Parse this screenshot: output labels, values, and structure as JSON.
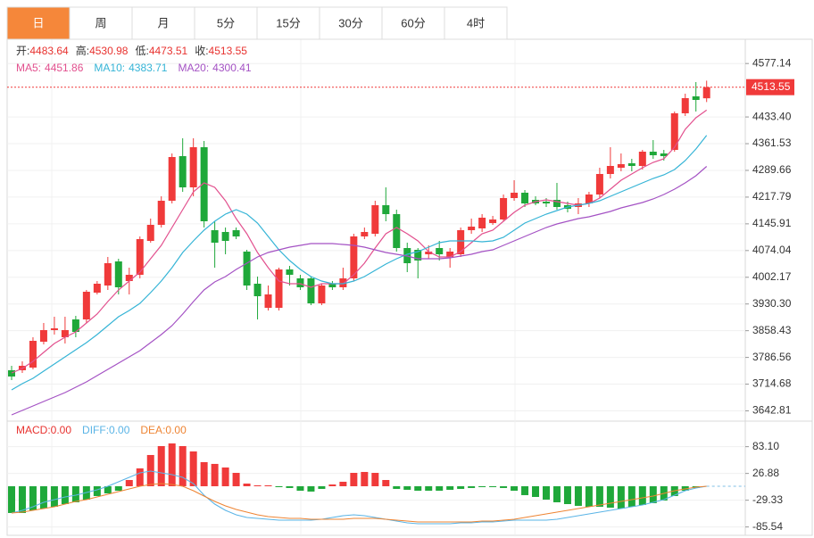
{
  "tabs": {
    "items": [
      "日",
      "周",
      "月",
      "5分",
      "15分",
      "30分",
      "60分",
      "4时"
    ],
    "active": 0,
    "active_color": "#f5873a"
  },
  "chart_data": [
    {
      "type": "candlestick",
      "ohlc_labels": {
        "open": "开:",
        "high": "高:",
        "low": "低:",
        "close": "收:"
      },
      "open": [
        3752,
        3752,
        3759.2,
        3828.8,
        3860,
        3840.8,
        3888.8,
        3888.8,
        3960.8,
        3980,
        4044.8,
        3992,
        4008.8,
        4100,
        4143.2,
        4208,
        4328,
        4244,
        4352,
        4128.8,
        4124,
        4128.8,
        4071.2,
        3984.8,
        3920,
        3920,
        4023.2,
        3999.2,
        3999.2,
        3932,
        3984.8,
        3975.2,
        3999.2,
        4112,
        4119.2,
        4196,
        4172,
        4080.8,
        4076,
        4064,
        4080.8,
        4056.8,
        4064,
        4128.8,
        4133.6,
        4148,
        4157.6,
        4215.2,
        4229.6,
        4210.4,
        4205.6,
        4210.4,
        4196,
        4191.2,
        4200.8,
        4224.8,
        4280,
        4296.8,
        4308.8,
        4301.6,
        4340,
        4335.2,
        4344.8,
        4443.2,
        4488.8,
        4483.64
      ],
      "high": [
        3764,
        3776,
        3840.8,
        3879.2,
        3896,
        3896,
        3898.4,
        3968,
        3992,
        4056.8,
        4052,
        4028,
        4112,
        4160,
        4220,
        4335.2,
        4376,
        4376,
        4368.8,
        4152.8,
        4136,
        4136,
        4076,
        4004,
        3980,
        4028,
        4032.8,
        4008.8,
        4004,
        3984.8,
        3992,
        4028,
        4119.2,
        4136,
        4208,
        4244,
        4184,
        4095.2,
        4080.8,
        4088,
        4100,
        4080.8,
        4136,
        4160,
        4172,
        4167.2,
        4224.8,
        4263.2,
        4236.8,
        4220,
        4215.2,
        4256,
        4205.6,
        4215.2,
        4232,
        4296.8,
        4352,
        4335.2,
        4320.8,
        4344.8,
        4371.2,
        4344.8,
        4448,
        4496,
        4527.2,
        4530.98
      ],
      "low": [
        3725.6,
        3744.8,
        3754.4,
        3821.6,
        3848,
        3824,
        3840.8,
        3879.2,
        3956,
        3968,
        3956,
        3956,
        3999.2,
        4095.2,
        4136,
        4200.8,
        4232,
        4220,
        4136,
        4028,
        4064,
        4104.8,
        3968,
        3888.8,
        3912.8,
        3912.8,
        3980,
        3968,
        3927.2,
        3927.2,
        3968,
        3968,
        3992,
        4104.8,
        4112,
        4152.8,
        4071.2,
        4016,
        3999.2,
        4052,
        4047.2,
        4028,
        4056.8,
        4119.2,
        4124,
        4143.2,
        4152.8,
        4208,
        4191.2,
        4196,
        4191.2,
        4184,
        4176.8,
        4172,
        4191.2,
        4215.2,
        4268,
        4287.2,
        4287.2,
        4292,
        4320.8,
        4316,
        4340,
        4436,
        4448,
        4473.51
      ],
      "close": [
        3735.2,
        3764,
        3831.2,
        3860,
        3864.8,
        3860,
        3855.2,
        3963.2,
        3984.8,
        4040,
        3975.2,
        4008.8,
        4104.8,
        4143.2,
        4208,
        4325.6,
        4244,
        4352,
        4152.8,
        4095.2,
        4100,
        4112,
        3980,
        3951.2,
        3956,
        4023.2,
        4008.8,
        3975.2,
        3932,
        3980,
        3975.2,
        3999.2,
        4112,
        4124,
        4196,
        4172,
        4080.8,
        4040,
        4047.2,
        4071.2,
        4064,
        4071.2,
        4128.8,
        4138.4,
        4162.4,
        4157.6,
        4215.2,
        4229.6,
        4200.8,
        4200.8,
        4200.8,
        4191.2,
        4186.4,
        4200.8,
        4224.8,
        4280,
        4301.6,
        4306.4,
        4301.6,
        4340,
        4330.4,
        4328,
        4443.2,
        4484,
        4479.2,
        4513.55
      ],
      "up_color": "#f03a3a",
      "down_color": "#1fa83a",
      "label_color": "#333333",
      "value_color": "#e8322f",
      "series": [
        {
          "name": "MA5:",
          "color": "#e2508e",
          "values": [
            3744.8,
            3756.8,
            3776,
            3800,
            3824,
            3840.8,
            3855.2,
            3879.2,
            3903.2,
            3936.8,
            3968,
            3992,
            4016,
            4052,
            4088,
            4136,
            4184,
            4232,
            4256,
            4244,
            4208,
            4160,
            4119.2,
            4068.8,
            4028,
            3992,
            3984.8,
            3984.8,
            3975.2,
            3984.8,
            3984.8,
            3984.8,
            4008.8,
            4040,
            4080.8,
            4119.2,
            4136,
            4119.2,
            4100,
            4071.2,
            4056.8,
            4056.8,
            4071.2,
            4095.2,
            4119.2,
            4128.8,
            4152.8,
            4176.8,
            4196,
            4205.6,
            4210.4,
            4205.6,
            4200.8,
            4196,
            4200.8,
            4215.2,
            4239.2,
            4263.2,
            4280,
            4296.8,
            4311.2,
            4320.8,
            4352,
            4400,
            4431.2,
            4451.86
          ]
        },
        {
          "name": "MA10:",
          "color": "#35b4d6",
          "values": [
            3699.2,
            3716,
            3730.4,
            3749.6,
            3768.8,
            3788,
            3807.2,
            3826.4,
            3848,
            3872,
            3896,
            3912.8,
            3932,
            3960.8,
            3992,
            4028,
            4068.8,
            4100,
            4128.8,
            4152.8,
            4172,
            4184,
            4172,
            4148,
            4112,
            4076,
            4047.2,
            4023.2,
            4004,
            3992,
            3984.8,
            3984.8,
            3992,
            4004,
            4020.8,
            4037.6,
            4052,
            4064,
            4071.2,
            4083.2,
            4095.2,
            4100,
            4100,
            4100,
            4097.6,
            4100,
            4109.6,
            4128.8,
            4148,
            4160,
            4172,
            4181.6,
            4191.2,
            4196,
            4200.8,
            4208,
            4220,
            4232,
            4244,
            4256,
            4268,
            4277.6,
            4292,
            4316,
            4347.2,
            4383.71
          ]
        },
        {
          "name": "MA20:",
          "color": "#a452c4",
          "values": [
            3632,
            3644,
            3656,
            3668,
            3680,
            3692,
            3706.4,
            3720.8,
            3737.6,
            3754.4,
            3771.2,
            3788,
            3804.8,
            3826.4,
            3848,
            3872,
            3903.2,
            3936.8,
            3968,
            3989.6,
            4004,
            4023.2,
            4040,
            4056.8,
            4068.8,
            4076,
            4083.2,
            4088,
            4092.8,
            4092.8,
            4092.8,
            4090.4,
            4088,
            4083.2,
            4076,
            4068.8,
            4064,
            4059.2,
            4052,
            4052,
            4052,
            4054.4,
            4059.2,
            4064,
            4071.2,
            4076,
            4088,
            4100,
            4112,
            4124,
            4136,
            4145.6,
            4152.8,
            4160,
            4164.8,
            4172,
            4179.2,
            4188.8,
            4196,
            4203.2,
            4212.8,
            4224.8,
            4239.2,
            4256,
            4275.2,
            4300.41
          ]
        }
      ],
      "ylim": [
        3615.2,
        4640
      ],
      "yticks": [
        4577.14,
        {
          "value": 4433.4,
          "label": "4433.40"
        },
        4361.53,
        4289.66,
        4217.79,
        4145.91,
        4074.04,
        4002.17,
        {
          "value": 3930.3,
          "label": "3930.30"
        },
        3858.43,
        3786.56,
        3714.68,
        3642.81
      ],
      "grid": true
    },
    {
      "type": "macd",
      "up_color": "#f03a3a",
      "down_color": "#1fa83a",
      "series": [
        {
          "name": "MACD:",
          "kind": "histogram",
          "color": "#e8322f",
          "legend_value_label": "0.00",
          "values": [
            -56.2,
            -56.2,
            -50.6,
            -46.9,
            -43.1,
            -37.5,
            -33.7,
            -28.1,
            -20.6,
            -15.0,
            -9.4,
            13.1,
            37.5,
            65.6,
            84.3,
            89.9,
            84.3,
            73.1,
            50.6,
            46.9,
            39.4,
            28.1,
            5.6,
            1.9,
            1.9,
            -1.9,
            -3.7,
            -9.4,
            -11.2,
            -5.6,
            3.7,
            9.4,
            28.1,
            30.0,
            28.1,
            13.1,
            -5.6,
            -7.5,
            -9.4,
            -9.4,
            -9.4,
            -7.5,
            -5.6,
            -3.7,
            -1.9,
            -1.9,
            -3.7,
            -9.4,
            -18.7,
            -22.5,
            -28.1,
            -33.7,
            -37.5,
            -41.2,
            -43.1,
            -43.1,
            -45.0,
            -46.9,
            -43.1,
            -39.4,
            -35.6,
            -30.0,
            -20.6,
            -9.4,
            -3.7,
            0
          ]
        },
        {
          "name": "DIFF:",
          "kind": "line",
          "color": "#5ab4e6",
          "legend_value_label": "0.00",
          "values": [
            -56.2,
            -50.6,
            -43.1,
            -33.7,
            -28.1,
            -22.5,
            -18.7,
            -13.1,
            -7.5,
            0,
            9.4,
            18.7,
            28.1,
            31.9,
            28.1,
            24.4,
            18.7,
            5.6,
            -18.7,
            -37.5,
            -50.6,
            -60.0,
            -65.6,
            -67.5,
            -69.3,
            -71.2,
            -71.2,
            -71.2,
            -71.2,
            -69.3,
            -65.6,
            -61.8,
            -60.0,
            -61.8,
            -65.6,
            -69.3,
            -73.1,
            -76.8,
            -78.7,
            -78.7,
            -78.7,
            -78.7,
            -76.8,
            -76.8,
            -75.0,
            -75.0,
            -73.1,
            -71.2,
            -71.2,
            -71.2,
            -71.2,
            -69.3,
            -65.6,
            -61.8,
            -58.1,
            -54.3,
            -50.6,
            -46.9,
            -43.1,
            -39.4,
            -33.7,
            -28.1,
            -18.7,
            -9.4,
            -3.7,
            0
          ]
        },
        {
          "name": "DEA:",
          "kind": "line",
          "color": "#ee8433",
          "legend_value_label": "0.00",
          "values": [
            -56.2,
            -54.3,
            -50.6,
            -46.9,
            -43.1,
            -37.5,
            -31.9,
            -28.1,
            -22.5,
            -16.9,
            -11.2,
            -5.6,
            0,
            3.7,
            5.6,
            3.7,
            0,
            -9.4,
            -20.6,
            -31.9,
            -41.2,
            -48.7,
            -54.3,
            -60.0,
            -63.7,
            -65.6,
            -67.5,
            -67.5,
            -69.3,
            -69.3,
            -69.3,
            -69.3,
            -67.5,
            -67.5,
            -67.5,
            -69.3,
            -71.2,
            -73.1,
            -75.0,
            -75.0,
            -75.0,
            -75.0,
            -75.0,
            -75.0,
            -73.1,
            -73.1,
            -71.2,
            -69.3,
            -65.6,
            -61.8,
            -58.1,
            -54.3,
            -50.6,
            -46.9,
            -43.1,
            -39.4,
            -35.6,
            -31.9,
            -28.1,
            -24.4,
            -20.6,
            -15.0,
            -9.4,
            -5.6,
            -1.9,
            0
          ]
        }
      ],
      "ylim": [
        -103.1,
        134.9
      ],
      "yticks": [
        {
          "value": 83.1,
          "label": "83.10"
        },
        26.88,
        -29.33,
        -85.54
      ],
      "grid": true
    }
  ]
}
